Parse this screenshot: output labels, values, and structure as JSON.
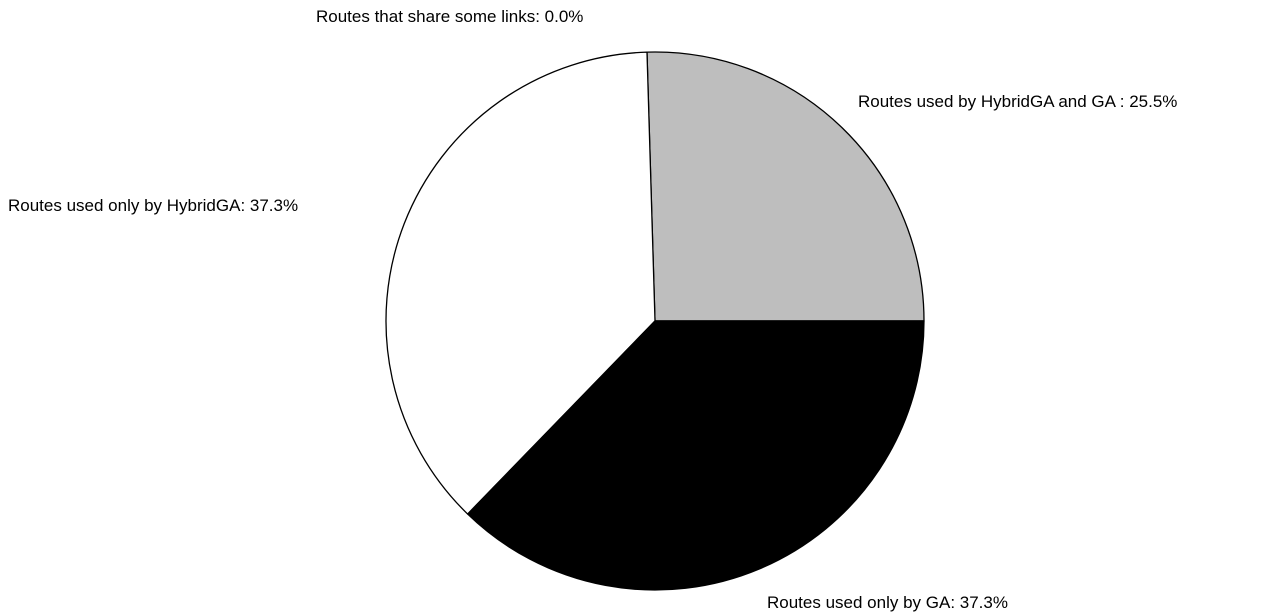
{
  "chart_data": {
    "type": "pie",
    "title": "",
    "slices": [
      {
        "label": "Routes used by HybridGA and GA",
        "text": "Routes used by HybridGA and GA :  25.5%",
        "value": 25.5,
        "color": "#bebebe"
      },
      {
        "label": "Routes used only by GA",
        "text": "Routes used only by GA:  37.3%",
        "value": 37.3,
        "color": "#ffffff"
      },
      {
        "label": "Routes used only by HybridGA",
        "text": "Routes used only by HybridGA:  37.3%",
        "value": 37.3,
        "color": "#000000"
      },
      {
        "label": "Routes that share some links",
        "text": "Routes that share some links:  0.0%",
        "value": 0.0,
        "color": "#ffffff"
      }
    ],
    "start_angle_deg": 0,
    "direction": "counterclockwise",
    "outline_color": "#000000",
    "legend": "none"
  }
}
